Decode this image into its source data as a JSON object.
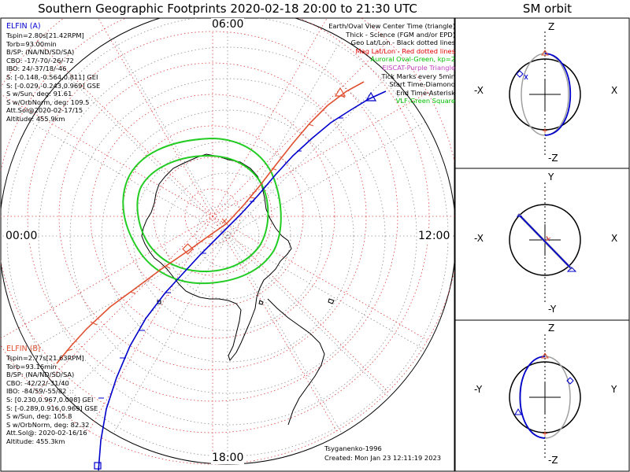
{
  "title": "Southern Geographic Footprints 2020-02-18 20:00 to 21:30 UTC",
  "sm_title": "SM orbit",
  "local_time_labels": {
    "top": "06:00",
    "left": "00:00",
    "right": "12:00",
    "bottom": "18:00"
  },
  "legend": [
    {
      "text": "Earth/Oval View Center Time (triangle)",
      "color": "#000000"
    },
    {
      "text": "Thick - Science (FGM and/or EPD)",
      "color": "#000000"
    },
    {
      "text": "Geo Lat/Lon - Black dotted lines",
      "color": "#000000"
    },
    {
      "text": "Mag Lat/Lon - Red dotted lines",
      "color": "#e00000"
    },
    {
      "text": "Auroral Oval-Green, kp=2",
      "color": "#00c000"
    },
    {
      "text": "EISCAT-Purple Triangle",
      "color": "#c040c0"
    },
    {
      "text": "Tick Marks every 5min",
      "color": "#000000"
    },
    {
      "text": "Start Time-Diamond",
      "color": "#000000"
    },
    {
      "text": "End Time-Asterisk",
      "color": "#000000"
    },
    {
      "text": "VLF-Green Square",
      "color": "#00c000"
    }
  ],
  "elfin_a": {
    "name": "ELFIN (A)",
    "color": "#0000cc",
    "lines": [
      "Tspin=2.80s[21.42RPM]",
      "Torb=93.00min",
      "B/SP: (NA/ND/SD/SA)",
      "CBO: -17/-70/-26/-72",
      "IBO: 24/-37/18/-46",
      "S: [-0.148,-0.564,0.811] GEI",
      "S: [-0.029,-0.243,0.969] GSE",
      "S w/Sun, deg: 91.61",
      "S w/OrbNorm, deg: 109.5",
      "Att.Sol@2020-02-17/15",
      "Altitude: 455.9km"
    ]
  },
  "elfin_b": {
    "name": "ELFIN (B)",
    "color": "#e05030",
    "lines": [
      "Tspin=2.77s[21.63RPM]",
      "Torb=93.16min",
      "B/SP: (NA/ND/SD/SA)",
      "CBO: -42/22/-31/40",
      "IBO: -84/59/-55/82",
      "S: [0.230,0.967,0.098] GEI",
      "S: [-0.289,0.916,0.969] GSE",
      "S w/Sun, deg: 105.8",
      "S w/OrbNorm, deg: 82.32",
      "Att.Sol@: 2020-02-16/16",
      "Altitude: 455.3km"
    ]
  },
  "credits": {
    "model": "Tsyganenko-1996",
    "created": "Created: Mon Jan 23 12:11:19 2023"
  },
  "sm_panels": [
    {
      "top": "Z",
      "bottom": "-Z",
      "left": "-X",
      "right": "X"
    },
    {
      "top": "Y",
      "bottom": "-Y",
      "left": "-X",
      "right": "X"
    },
    {
      "top": "Z",
      "bottom": "-Z",
      "left": "-Y",
      "right": "Y"
    }
  ],
  "colors": {
    "elfin_a": "#0000cc",
    "elfin_b": "#e05030",
    "oval": "#22cc22",
    "mag_grid": "#e04040",
    "geo_grid": "#808080",
    "orbit_gray": "#a0a0a0"
  }
}
